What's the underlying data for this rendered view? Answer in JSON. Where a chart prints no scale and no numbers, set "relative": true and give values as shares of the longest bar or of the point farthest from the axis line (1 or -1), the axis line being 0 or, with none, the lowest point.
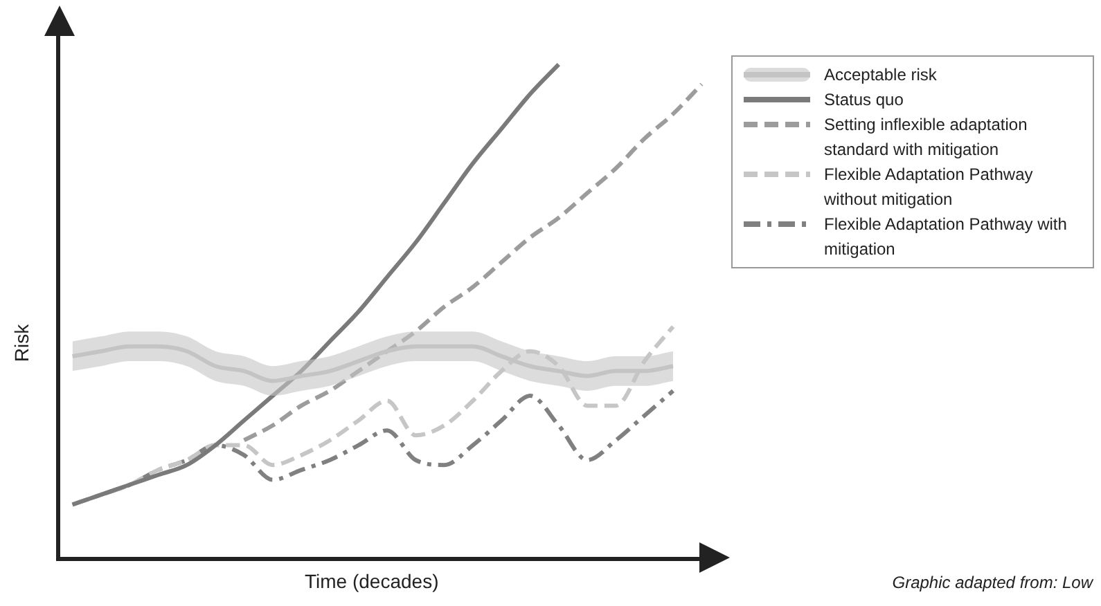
{
  "chart_data": {
    "type": "line",
    "relative": true,
    "xlabel": "Time (decades)",
    "ylabel": "Risk",
    "legend": "top right",
    "grid": false,
    "marker": "none",
    "categories": [
      null,
      null,
      null,
      null,
      null,
      null,
      null,
      null,
      null,
      null,
      null,
      null,
      null,
      null,
      null,
      null,
      null,
      null,
      null,
      null,
      null,
      null,
      null
    ],
    "series": [
      {
        "name": "Acceptable risk",
        "color": "#c4c4c4",
        "values": [
          0.41,
          0.42,
          0.43,
          0.43,
          0.42,
          0.39,
          0.38,
          0.36,
          0.37,
          0.38,
          0.4,
          0.42,
          0.43,
          0.43,
          0.43,
          0.41,
          0.39,
          0.38,
          0.37,
          0.38,
          0.38,
          0.39,
          null
        ],
        "lower": [
          0.38,
          0.39,
          0.4,
          0.4,
          0.39,
          0.36,
          0.35,
          0.33,
          0.34,
          0.35,
          0.37,
          0.39,
          0.4,
          0.4,
          0.4,
          0.38,
          0.36,
          0.35,
          0.34,
          0.35,
          0.35,
          0.36,
          null
        ],
        "upper": [
          0.44,
          0.45,
          0.46,
          0.46,
          0.45,
          0.42,
          0.41,
          0.39,
          0.4,
          0.41,
          0.43,
          0.45,
          0.46,
          0.46,
          0.46,
          0.44,
          0.42,
          0.41,
          0.4,
          0.41,
          0.41,
          0.42,
          null
        ],
        "line_style": "solid"
      },
      {
        "name": "Status quo",
        "color": "#7a7a7a",
        "values": [
          0.11,
          0.13,
          0.15,
          0.17,
          0.19,
          0.23,
          0.28,
          0.33,
          0.38,
          0.44,
          0.5,
          0.57,
          0.64,
          0.72,
          0.8,
          0.87,
          0.94,
          1,
          null,
          null,
          null,
          null,
          null
        ],
        "line_style": "solid"
      },
      {
        "name": "Setting inflexible adaptation standard with mitigation",
        "color": "#9c9c9c",
        "values": [
          null,
          null,
          null,
          null,
          null,
          null,
          0.24,
          0.27,
          0.31,
          0.34,
          0.38,
          0.42,
          0.46,
          0.51,
          0.55,
          0.6,
          0.65,
          0.69,
          0.74,
          0.79,
          0.85,
          0.9,
          0.96
        ],
        "line_style": "dashed"
      },
      {
        "name": "Flexible Adaptation Pathway without mitigation",
        "color": "#c6c6c6",
        "values": [
          0.11,
          0.13,
          0.15,
          0.18,
          0.2,
          0.23,
          0.23,
          0.19,
          0.21,
          0.24,
          0.28,
          0.32,
          0.25,
          0.27,
          0.32,
          0.38,
          0.42,
          0.39,
          0.31,
          0.31,
          0.4,
          0.47,
          null
        ],
        "line_style": "dashed"
      },
      {
        "name": "Flexible Adaptation Pathway with mitigation",
        "color": "#808080",
        "values": [
          0.11,
          0.13,
          0.15,
          0.18,
          0.2,
          0.23,
          0.21,
          0.16,
          0.18,
          0.2,
          0.23,
          0.26,
          0.2,
          0.19,
          0.23,
          0.28,
          0.33,
          0.27,
          0.2,
          0.24,
          0.29,
          0.34,
          null
        ],
        "line_style": "dashdot"
      }
    ],
    "annotations": [
      "Graphic adapted from: Low"
    ]
  }
}
